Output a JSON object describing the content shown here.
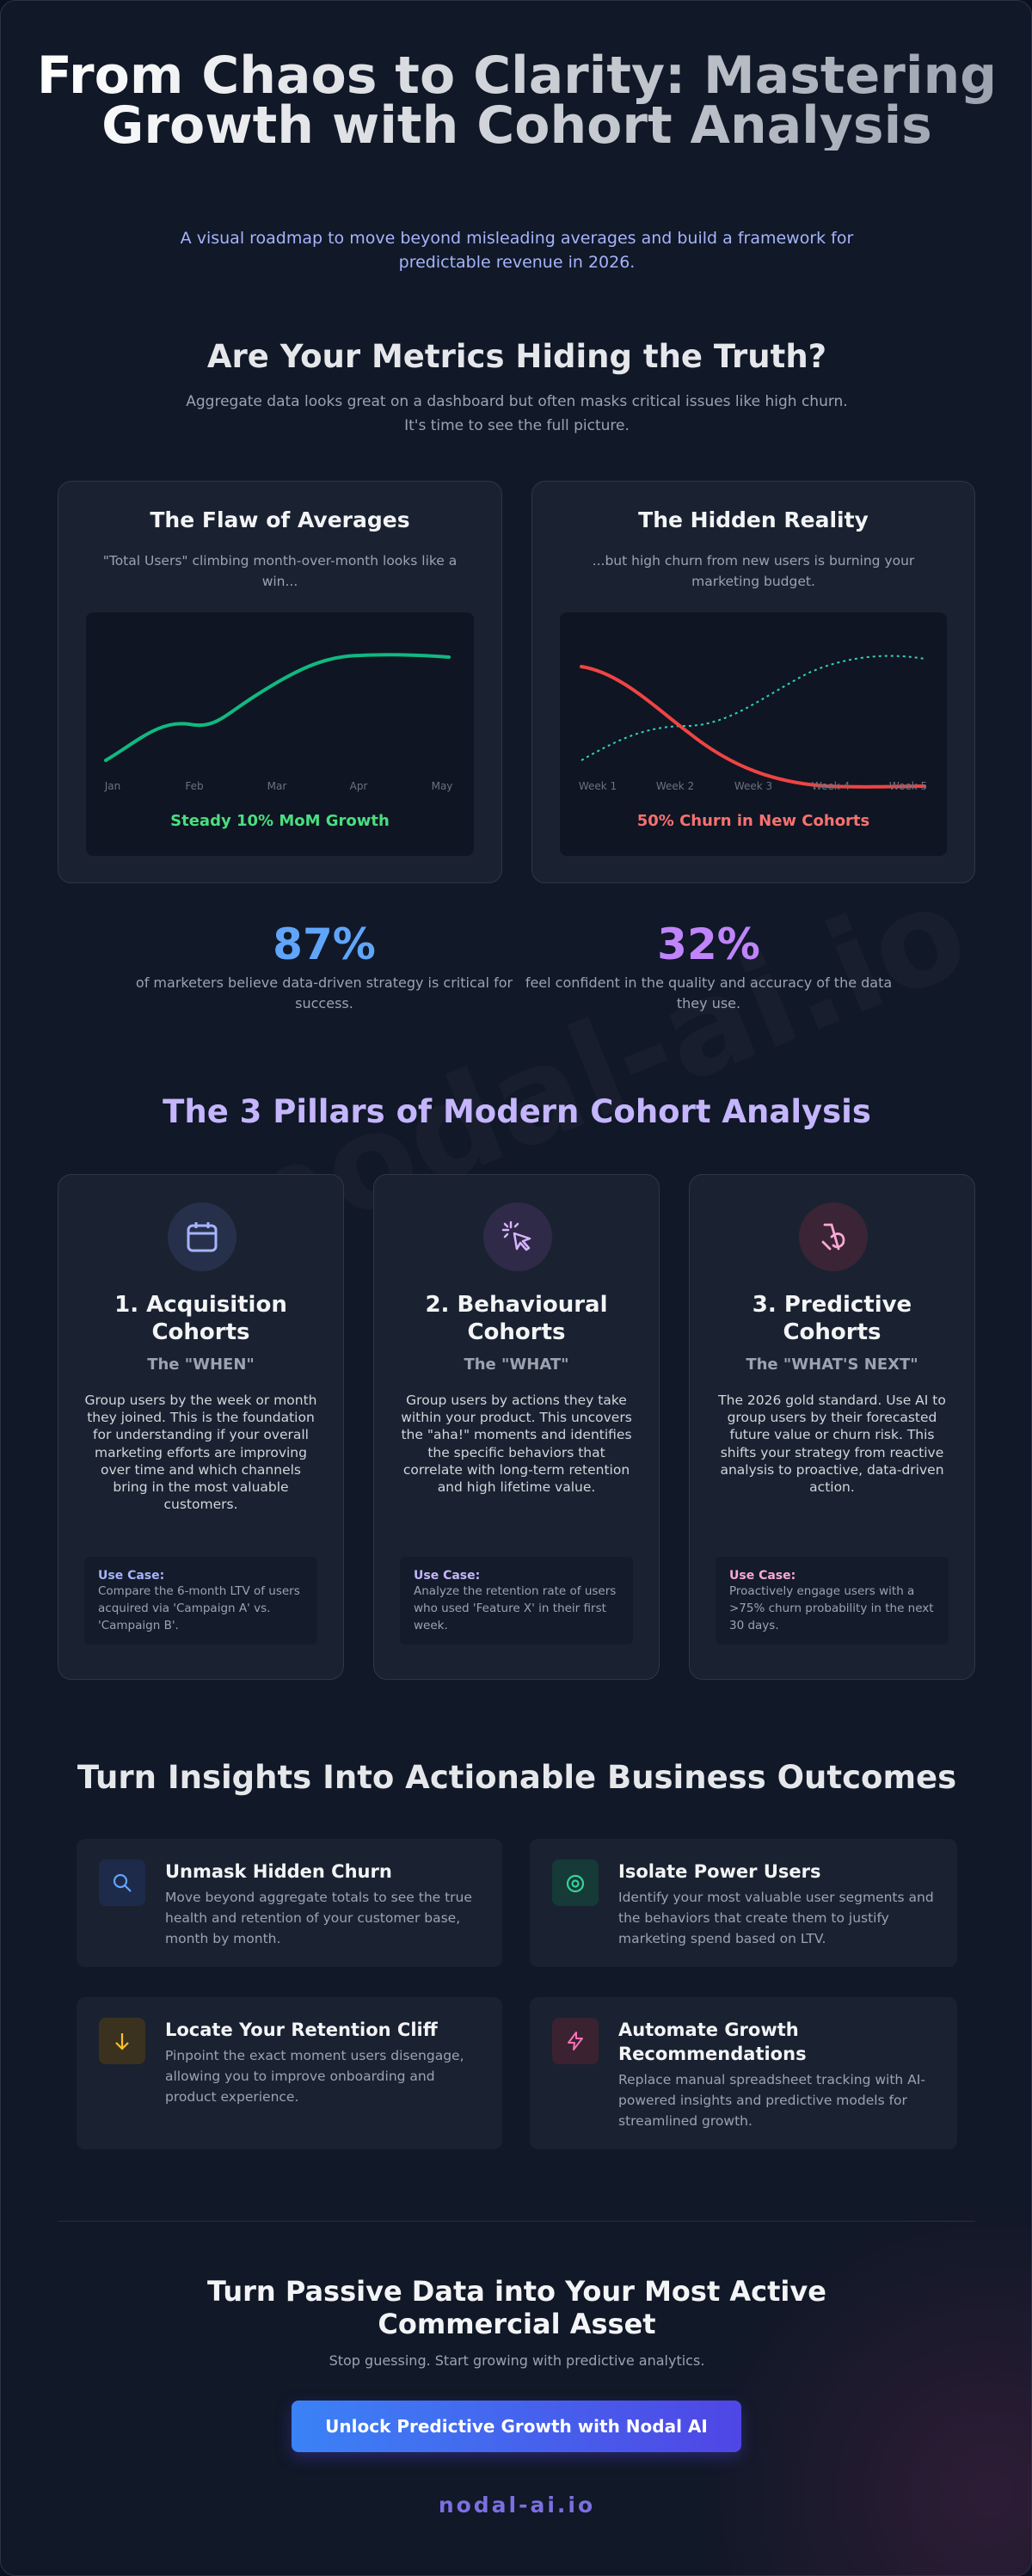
{
  "header": {
    "title": "From Chaos to Clarity: Mastering Growth with Cohort Analysis",
    "subtitle": "A visual roadmap to move beyond misleading averages and build a framework for predictable revenue in 2026."
  },
  "problem": {
    "title": "Are Your Metrics Hiding the Truth?",
    "intro": "Aggregate data looks great on a dashboard but often masks critical issues like high churn. It's time to see the full picture.",
    "cards": [
      {
        "title": "The Flaw of Averages",
        "description": "\"Total Users\" climbing month-over-month looks like a win...",
        "labels": [
          "Jan",
          "Feb",
          "Mar",
          "Apr",
          "May"
        ],
        "caption": "Steady 10% MoM Growth"
      },
      {
        "title": "The Hidden Reality",
        "description": "...but high churn from new users is burning your marketing budget.",
        "labels": [
          "Week 1",
          "Week 2",
          "Week 3",
          "Week 4",
          "Week 5"
        ],
        "caption": "50% Churn in New Cohorts"
      }
    ]
  },
  "stats": [
    {
      "value": "87%",
      "text": "of marketers believe data-driven strategy is critical for success."
    },
    {
      "value": "32%",
      "text": "feel confident in the quality and accuracy of the data they use."
    }
  ],
  "pillars": {
    "title": "The 3 Pillars of Modern Cohort Analysis",
    "items": [
      {
        "title": "1. Acquisition Cohorts",
        "subtitle": "The \"WHEN\"",
        "body": "Group users by the week or month they joined. This is the foundation for understanding if your overall marketing efforts are improving over time and which channels bring in the most valuable customers.",
        "use_case_label": "Use Case:",
        "use_case": "Compare the 6-month LTV of users acquired via 'Campaign A' vs. 'Campaign B'."
      },
      {
        "title": "2. Behavioural Cohorts",
        "subtitle": "The \"WHAT\"",
        "body": "Group users by actions they take within your product. This uncovers the \"aha!\" moments and identifies the specific behaviors that correlate with long-term retention and high lifetime value.",
        "use_case_label": "Use Case:",
        "use_case": "Analyze the retention rate of users who used 'Feature X' in their first week."
      },
      {
        "title": "3. Predictive Cohorts",
        "subtitle": "The \"WHAT'S NEXT\"",
        "body": "The 2026 gold standard. Use AI to group users by their forecasted future value or churn risk. This shifts your strategy from reactive analysis to proactive, data-driven action.",
        "use_case_label": "Use Case:",
        "use_case": "Proactively engage users with a >75% churn probability in the next 30 days."
      }
    ]
  },
  "outcomes": {
    "title": "Turn Insights Into Actionable Business Outcomes",
    "items": [
      {
        "title": "Unmask Hidden Churn",
        "description": "Move beyond aggregate totals to see the true health and retention of your customer base, month by month."
      },
      {
        "title": "Isolate Power Users",
        "description": "Identify your most valuable user segments and the behaviors that create them to justify marketing spend based on LTV."
      },
      {
        "title": "Locate Your Retention Cliff",
        "description": "Pinpoint the exact moment users disengage, allowing you to improve onboarding and product experience."
      },
      {
        "title": "Automate Growth Recommendations",
        "description": "Replace manual spreadsheet tracking with AI-powered insights and predictive models for streamlined growth."
      }
    ]
  },
  "cta": {
    "title": "Turn Passive Data into Your Most Active Commercial Asset",
    "subtitle": "Stop guessing. Start growing with predictive analytics.",
    "button": "Unlock Predictive Growth with Nodal AI"
  },
  "footer": {
    "brand": "nodal-ai.io"
  }
}
